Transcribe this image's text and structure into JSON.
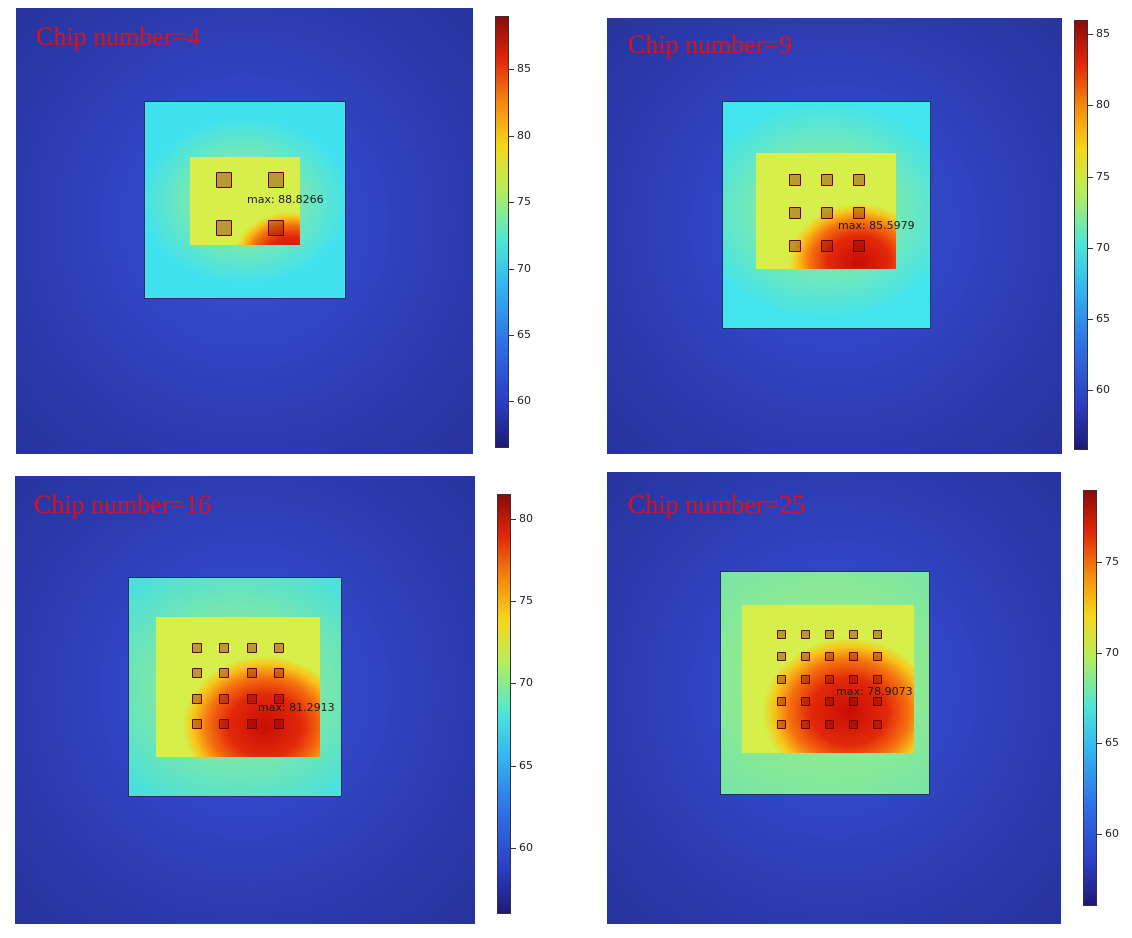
{
  "chart_data": [
    {
      "type": "heatmap",
      "title": "Chip number=4",
      "chip_grid": 2,
      "max_label": "max: 88.8266",
      "max_value": 88.8266,
      "colorbar_ticks": [
        60,
        65,
        70,
        75,
        80,
        85
      ],
      "colorbar_range": [
        56.5,
        89
      ]
    },
    {
      "type": "heatmap",
      "title": "Chip number=9",
      "chip_grid": 3,
      "max_label": "max: 85.5979",
      "max_value": 85.5979,
      "colorbar_ticks": [
        60,
        65,
        70,
        75,
        80,
        85
      ],
      "colorbar_range": [
        55.8,
        86
      ]
    },
    {
      "type": "heatmap",
      "title": "Chip number=16",
      "chip_grid": 4,
      "max_label": "max: 81.2913",
      "max_value": 81.2913,
      "colorbar_ticks": [
        60,
        65,
        70,
        75,
        80
      ],
      "colorbar_range": [
        56,
        81.5
      ]
    },
    {
      "type": "heatmap",
      "title": "Chip number=25",
      "chip_grid": 5,
      "max_label": "max: 78.9073",
      "max_value": 78.9073,
      "colorbar_ticks": [
        60,
        65,
        70,
        75
      ],
      "colorbar_range": [
        56,
        79
      ]
    }
  ],
  "colors": {
    "background_blue": "#2f3fb6",
    "plate_cyan": "#40e0ee",
    "plate_green": "#66e6b8",
    "hot_red": "#e31b00",
    "title_red": "#e0101a"
  }
}
